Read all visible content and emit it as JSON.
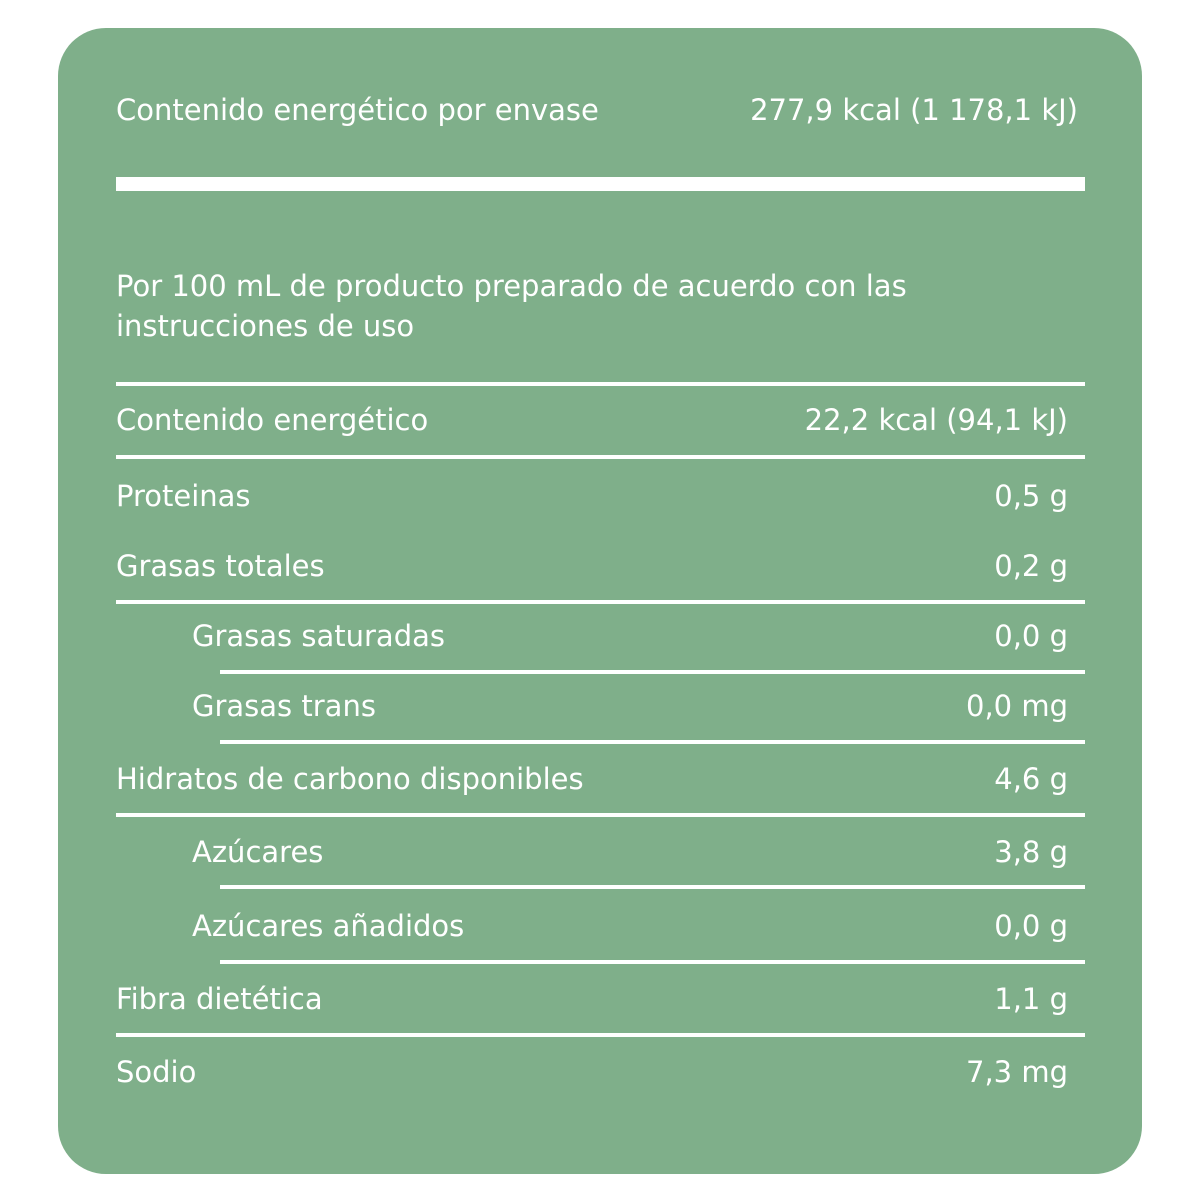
{
  "header": {
    "label": "Contenido energético por envase",
    "value": "277,9 kcal (1 178,1 kJ)"
  },
  "serving_note": "Por 100 mL de producto preparado de acuerdo con las instrucciones de uso",
  "rows": [
    {
      "label": "Contenido energético",
      "value": "22,2 kcal (94,1 kJ)"
    },
    {
      "label": "Proteinas",
      "value": "0,5 g"
    },
    {
      "label": "Grasas totales",
      "value": "0,2 g"
    },
    {
      "label": "Grasas saturadas",
      "value": "0,0 g"
    },
    {
      "label": "Grasas trans",
      "value": "0,0 mg"
    },
    {
      "label": "Hidratos de carbono disponibles",
      "value": "4,6 g"
    },
    {
      "label": "Azúcares",
      "value": "3,8 g"
    },
    {
      "label": "Azúcares añadidos",
      "value": "0,0 g"
    },
    {
      "label": "Fibra dietética",
      "value": "1,1 g"
    },
    {
      "label": "Sodio",
      "value": "7,3 mg"
    }
  ],
  "colors": {
    "panel": "#7faf8a",
    "text": "#ffffff"
  }
}
